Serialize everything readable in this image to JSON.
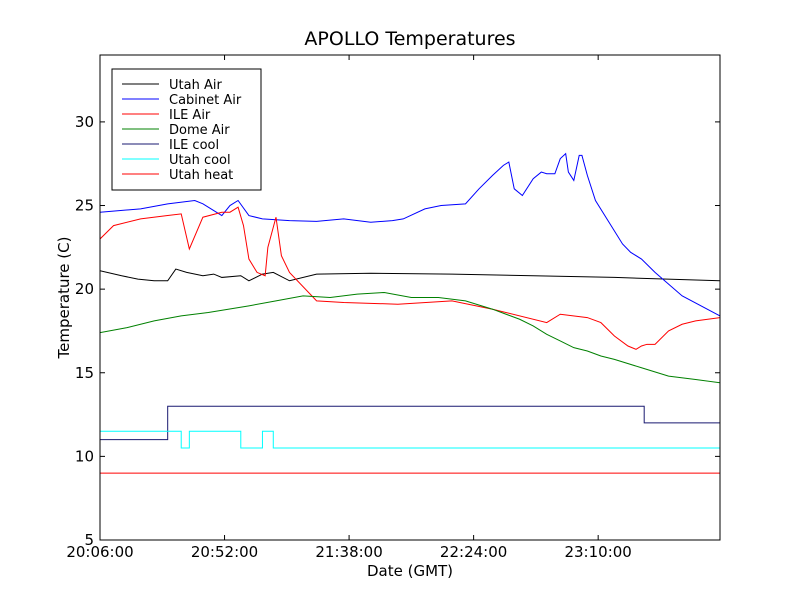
{
  "chart_data": {
    "type": "line",
    "title": "APOLLO Temperatures",
    "xlabel": "Date (GMT)",
    "ylabel": "Temperature (C)",
    "xlim": [
      0,
      229
    ],
    "ylim": [
      5,
      34
    ],
    "x_unit": "minutes since 20:06:00",
    "x_ticks": [
      {
        "value": 0,
        "label": "20:06:00"
      },
      {
        "value": 46,
        "label": "20:52:00"
      },
      {
        "value": 92,
        "label": "21:38:00"
      },
      {
        "value": 138,
        "label": "22:24:00"
      },
      {
        "value": 184,
        "label": "23:10:00"
      }
    ],
    "y_ticks": [
      {
        "value": 5,
        "label": "5"
      },
      {
        "value": 10,
        "label": "10"
      },
      {
        "value": 15,
        "label": "15"
      },
      {
        "value": 20,
        "label": "20"
      },
      {
        "value": 25,
        "label": "25"
      },
      {
        "value": 30,
        "label": "30"
      }
    ],
    "legend_position": "top-left",
    "series": [
      {
        "name": "Utah Air",
        "color": "#000000",
        "x": [
          0,
          8,
          14,
          20,
          25,
          28,
          32,
          38,
          42,
          45,
          52,
          55,
          60,
          64,
          70,
          80,
          100,
          130,
          160,
          190,
          229
        ],
        "y": [
          21.1,
          20.8,
          20.6,
          20.5,
          20.5,
          21.2,
          21.0,
          20.8,
          20.9,
          20.7,
          20.8,
          20.5,
          20.9,
          21.0,
          20.5,
          20.9,
          20.95,
          20.9,
          20.8,
          20.7,
          20.5
        ]
      },
      {
        "name": "Cabinet Air",
        "color": "#0000ff",
        "x": [
          0,
          15,
          25,
          35,
          38,
          45,
          48,
          51,
          55,
          60,
          70,
          80,
          90,
          100,
          108,
          112,
          120,
          126,
          135,
          140,
          145,
          149,
          151,
          153,
          156,
          160,
          163,
          165,
          168,
          170,
          172,
          173,
          175,
          177,
          178,
          180,
          183,
          188,
          193,
          196,
          200,
          205,
          215,
          229
        ],
        "y": [
          24.6,
          24.8,
          25.1,
          25.3,
          25.1,
          24.4,
          25.0,
          25.3,
          24.4,
          24.2,
          24.1,
          24.05,
          24.2,
          24.0,
          24.1,
          24.2,
          24.8,
          25.0,
          25.1,
          26.0,
          26.8,
          27.4,
          27.6,
          26.0,
          25.6,
          26.6,
          27.0,
          26.9,
          26.9,
          27.8,
          28.1,
          27.0,
          26.5,
          28.0,
          28.0,
          26.8,
          25.3,
          24.0,
          22.7,
          22.2,
          21.8,
          21.0,
          19.6,
          18.4
        ]
      },
      {
        "name": "ILE Air",
        "color": "#ff0000",
        "x": [
          0,
          5,
          15,
          25,
          30,
          33,
          38,
          45,
          48,
          51,
          53,
          55,
          58,
          61,
          62,
          64,
          65,
          67,
          70,
          80,
          90,
          110,
          130,
          145,
          165,
          170,
          180,
          185,
          190,
          195,
          198,
          200,
          202,
          205,
          210,
          215,
          220,
          229
        ],
        "y": [
          23.0,
          23.8,
          24.2,
          24.4,
          24.5,
          22.4,
          24.3,
          24.6,
          24.6,
          24.9,
          23.8,
          21.8,
          21.0,
          20.8,
          22.5,
          23.7,
          24.3,
          22.0,
          21.0,
          19.3,
          19.2,
          19.1,
          19.3,
          18.8,
          18.0,
          18.5,
          18.3,
          18.0,
          17.2,
          16.6,
          16.4,
          16.6,
          16.7,
          16.7,
          17.5,
          17.9,
          18.1,
          18.3
        ]
      },
      {
        "name": "Dome Air",
        "color": "#008000",
        "x": [
          0,
          10,
          20,
          30,
          40,
          55,
          65,
          75,
          85,
          95,
          105,
          115,
          125,
          135,
          145,
          150,
          155,
          160,
          165,
          170,
          175,
          180,
          185,
          190,
          200,
          210,
          220,
          229
        ],
        "y": [
          17.4,
          17.7,
          18.1,
          18.4,
          18.6,
          19.0,
          19.3,
          19.6,
          19.5,
          19.7,
          19.8,
          19.5,
          19.5,
          19.3,
          18.8,
          18.5,
          18.2,
          17.8,
          17.3,
          16.9,
          16.5,
          16.3,
          16.0,
          15.8,
          15.3,
          14.8,
          14.6,
          14.4
        ]
      },
      {
        "name": "ILE cool",
        "color": "#191970",
        "step": true,
        "x": [
          0,
          25,
          25,
          201,
          201,
          229
        ],
        "y": [
          11.0,
          11.0,
          13.0,
          13.0,
          12.0,
          12.0
        ]
      },
      {
        "name": "Utah cool",
        "color": "#00ffff",
        "step": true,
        "x": [
          0,
          30,
          30,
          33,
          33,
          52,
          52,
          60,
          60,
          64,
          64,
          229
        ],
        "y": [
          11.5,
          11.5,
          10.5,
          10.5,
          11.5,
          11.5,
          10.5,
          10.5,
          11.5,
          11.5,
          10.5,
          10.5
        ]
      },
      {
        "name": "Utah heat",
        "color": "#ff0000",
        "step": true,
        "x": [
          0,
          229
        ],
        "y": [
          9.0,
          9.0
        ]
      }
    ]
  }
}
